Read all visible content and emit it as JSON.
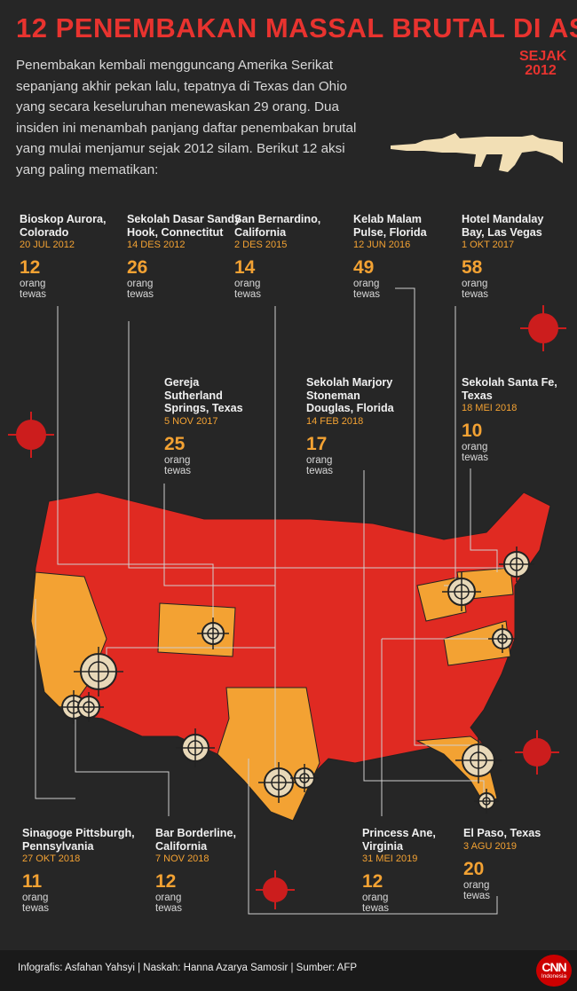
{
  "title": "12 PENEMBAKAN MASSAL BRUTAL DI AS",
  "since": {
    "line1": "SEJAK",
    "line2": "2012"
  },
  "intro": "Penembakan kembali mengguncang Amerika Serikat sepanjang akhir pekan lalu, tepatnya di Texas dan Ohio yang secara keseluruhan menewaskan 29 orang. Dua insiden ini menambah panjang daftar penembakan brutal yang mulai menjamur sejak 2012 silam. Berikut 12 aksi yang paling mematikan:",
  "events": [
    {
      "name": "Bioskop Aurora, Colorado",
      "date": "20 JUL 2012",
      "deaths": "12",
      "unit": "orang tewas"
    },
    {
      "name": "Sekolah Dasar Sandy Hook, Connectitut",
      "date": "14 DES 2012",
      "deaths": "26",
      "unit": "orang tewas"
    },
    {
      "name": "San Bernardino, California",
      "date": "2 DES 2015",
      "deaths": "14",
      "unit": "orang tewas"
    },
    {
      "name": "Kelab Malam Pulse, Florida",
      "date": "12 JUN 2016",
      "deaths": "49",
      "unit": "orang tewas"
    },
    {
      "name": "Hotel Mandalay Bay, Las Vegas",
      "date": "1 OKT 2017",
      "deaths": "58",
      "unit": "orang tewas"
    },
    {
      "name": "Gereja Sutherland Springs, Texas",
      "date": "5 NOV 2017",
      "deaths": "25",
      "unit": "orang tewas"
    },
    {
      "name": "Sekolah Marjory Stoneman Douglas, Florida",
      "date": "14 FEB 2018",
      "deaths": "17",
      "unit": "orang tewas"
    },
    {
      "name": "Sekolah Santa Fe, Texas",
      "date": "18 MEI 2018",
      "deaths": "10",
      "unit": "orang tewas"
    },
    {
      "name": "Sinagoge Pittsburgh, Pennsylvania",
      "date": "27 OKT 2018",
      "deaths": "11",
      "unit": "orang tewas"
    },
    {
      "name": "Bar Borderline, California",
      "date": "7 NOV 2018",
      "deaths": "12",
      "unit": "orang tewas"
    },
    {
      "name": "Princess Ane, Virginia",
      "date": "31 MEI 2019",
      "deaths": "12",
      "unit": "orang tewas"
    },
    {
      "name": "El Paso, Texas",
      "date": "3 AGU 2019",
      "deaths": "20",
      "unit": "orang tewas"
    }
  ],
  "footer": "Infografis: Asfahan Yahsyi | Naskah: Hanna Azarya Samosir | Sumber: AFP",
  "logo": {
    "l1": "CNN",
    "l2": "Indonesia"
  },
  "colors": {
    "red": "#e8332f",
    "orange": "#f3a233",
    "background": "#262626",
    "map_red": "#e02a22"
  }
}
